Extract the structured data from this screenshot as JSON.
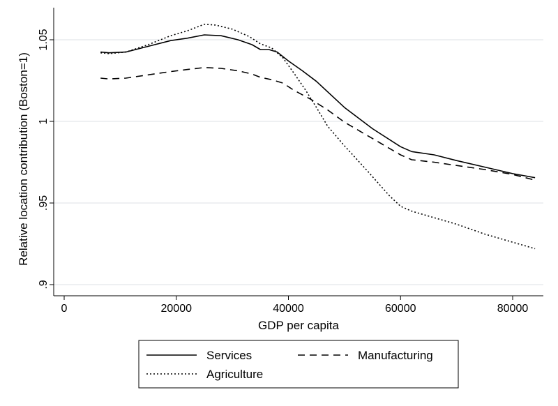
{
  "chart_data": {
    "type": "line",
    "xlabel": "GDP per capita",
    "ylabel": "Relative location contribution (Boston=1)",
    "xlim": [
      0,
      85000
    ],
    "ylim": [
      0.9,
      1.055
    ],
    "x_ticks": [
      0,
      20000,
      40000,
      60000,
      80000
    ],
    "x_tick_labels": [
      "0",
      "20000",
      "40000",
      "60000",
      "80000"
    ],
    "y_ticks": [
      0.9,
      0.95,
      1.0,
      1.05
    ],
    "y_tick_labels": [
      ".9",
      ".95",
      "1",
      "1.05"
    ],
    "grid": "horizontal",
    "legend_position": "bottom",
    "series": [
      {
        "name": "Services",
        "style": "solid",
        "color": "#000000",
        "points": [
          [
            6500,
            1.0425
          ],
          [
            8000,
            1.042
          ],
          [
            11000,
            1.0425
          ],
          [
            15000,
            1.046
          ],
          [
            19000,
            1.0495
          ],
          [
            22000,
            1.051
          ],
          [
            25000,
            1.053
          ],
          [
            28000,
            1.0525
          ],
          [
            31000,
            1.05
          ],
          [
            33500,
            1.047
          ],
          [
            35000,
            1.044
          ],
          [
            36500,
            1.044
          ],
          [
            38000,
            1.0425
          ],
          [
            40000,
            1.037
          ],
          [
            42500,
            1.031
          ],
          [
            45000,
            1.0245
          ],
          [
            50000,
            1.0085
          ],
          [
            55000,
            0.9955
          ],
          [
            60000,
            0.9845
          ],
          [
            62000,
            0.9815
          ],
          [
            66000,
            0.9795
          ],
          [
            70000,
            0.976
          ],
          [
            75000,
            0.972
          ],
          [
            80000,
            0.968
          ],
          [
            84000,
            0.9655
          ]
        ]
      },
      {
        "name": "Manufacturing",
        "style": "dashed",
        "color": "#000000",
        "points": [
          [
            6500,
            1.0265
          ],
          [
            8000,
            1.026
          ],
          [
            11000,
            1.0265
          ],
          [
            15000,
            1.0285
          ],
          [
            19000,
            1.0305
          ],
          [
            22000,
            1.0318
          ],
          [
            25000,
            1.033
          ],
          [
            28000,
            1.0325
          ],
          [
            31000,
            1.031
          ],
          [
            33500,
            1.029
          ],
          [
            35000,
            1.027
          ],
          [
            37000,
            1.0255
          ],
          [
            39000,
            1.0235
          ],
          [
            41000,
            1.019
          ],
          [
            44000,
            1.0135
          ],
          [
            47000,
            1.007
          ],
          [
            50000,
            0.9995
          ],
          [
            55000,
            0.9895
          ],
          [
            60000,
            0.9795
          ],
          [
            62000,
            0.9765
          ],
          [
            66000,
            0.975
          ],
          [
            70000,
            0.973
          ],
          [
            75000,
            0.9705
          ],
          [
            80000,
            0.9675
          ],
          [
            84000,
            0.964
          ]
        ]
      },
      {
        "name": "Agriculture",
        "style": "dotted",
        "color": "#000000",
        "points": [
          [
            6500,
            1.042
          ],
          [
            8000,
            1.0415
          ],
          [
            11000,
            1.0425
          ],
          [
            15000,
            1.047
          ],
          [
            19000,
            1.0525
          ],
          [
            22000,
            1.0555
          ],
          [
            25000,
            1.0595
          ],
          [
            27000,
            1.059
          ],
          [
            30000,
            1.0565
          ],
          [
            33000,
            1.052
          ],
          [
            35000,
            1.0475
          ],
          [
            37000,
            1.045
          ],
          [
            39000,
            1.039
          ],
          [
            41000,
            1.0295
          ],
          [
            43000,
            1.0195
          ],
          [
            45000,
            1.0085
          ],
          [
            47000,
            0.997
          ],
          [
            50000,
            0.985
          ],
          [
            54000,
            0.97
          ],
          [
            58000,
            0.9545
          ],
          [
            60000,
            0.948
          ],
          [
            62000,
            0.945
          ],
          [
            66000,
            0.941
          ],
          [
            70000,
            0.937
          ],
          [
            75000,
            0.931
          ],
          [
            80000,
            0.926
          ],
          [
            84000,
            0.922
          ]
        ]
      }
    ]
  }
}
